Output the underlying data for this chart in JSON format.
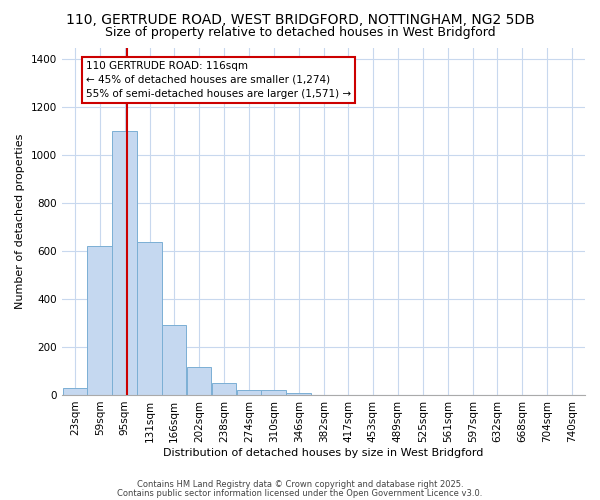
{
  "title_line1": "110, GERTRUDE ROAD, WEST BRIDGFORD, NOTTINGHAM, NG2 5DB",
  "title_line2": "Size of property relative to detached houses in West Bridgford",
  "xlabel": "Distribution of detached houses by size in West Bridgford",
  "ylabel": "Number of detached properties",
  "bin_labels": [
    "23sqm",
    "59sqm",
    "95sqm",
    "131sqm",
    "166sqm",
    "202sqm",
    "238sqm",
    "274sqm",
    "310sqm",
    "346sqm",
    "382sqm",
    "417sqm",
    "453sqm",
    "489sqm",
    "525sqm",
    "561sqm",
    "597sqm",
    "632sqm",
    "668sqm",
    "704sqm",
    "740sqm"
  ],
  "bin_lefts": [
    23,
    59,
    95,
    131,
    166,
    202,
    238,
    274,
    310,
    346,
    382,
    417,
    453,
    489,
    525,
    561,
    597,
    632,
    668,
    704,
    740
  ],
  "bin_width": 36,
  "bar_heights": [
    30,
    620,
    1100,
    640,
    290,
    115,
    50,
    20,
    20,
    10,
    0,
    0,
    0,
    0,
    0,
    0,
    0,
    0,
    0,
    0,
    0
  ],
  "bar_color": "#c5d8f0",
  "bar_edge_color": "#7bafd4",
  "property_size": 116,
  "property_line_color": "#cc0000",
  "annotation_text": "110 GERTRUDE ROAD: 116sqm\n← 45% of detached houses are smaller (1,274)\n55% of semi-detached houses are larger (1,571) →",
  "annotation_box_facecolor": "#ffffff",
  "annotation_box_edgecolor": "#cc0000",
  "ylim": [
    0,
    1450
  ],
  "yticks": [
    0,
    200,
    400,
    600,
    800,
    1000,
    1200,
    1400
  ],
  "plot_bg_color": "#ffffff",
  "fig_bg_color": "#ffffff",
  "grid_color": "#c8d8ee",
  "title_fontsize": 10,
  "subtitle_fontsize": 9,
  "axis_label_fontsize": 8,
  "tick_fontsize": 7.5,
  "footer_line1": "Contains HM Land Registry data © Crown copyright and database right 2025.",
  "footer_line2": "Contains public sector information licensed under the Open Government Licence v3.0."
}
